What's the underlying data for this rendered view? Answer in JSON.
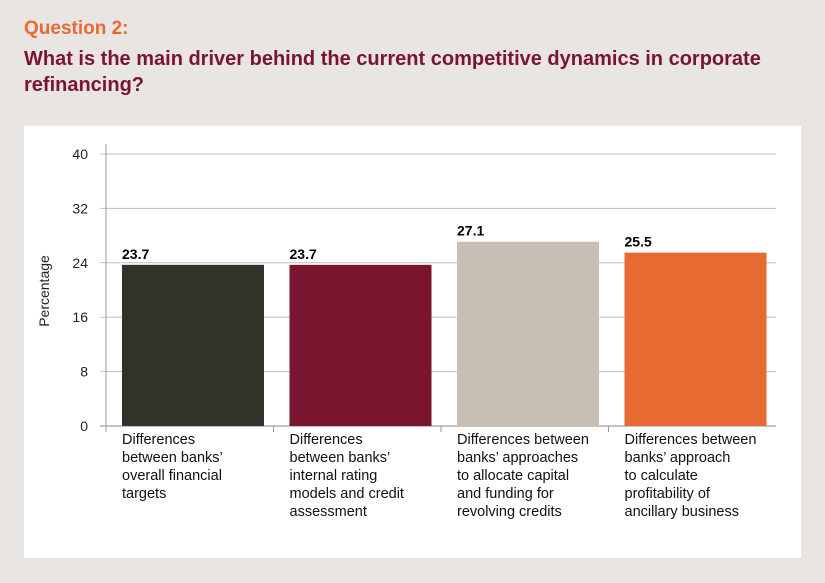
{
  "header": {
    "question_label": "Question 2:",
    "question_text": "What is the main driver behind the current competitive dynamics in corporate refinancing?"
  },
  "chart_data": {
    "type": "bar",
    "title": "",
    "xlabel": "",
    "ylabel": "Percentage",
    "ylim": [
      0,
      40
    ],
    "yticks": [
      0,
      8,
      16,
      24,
      32,
      40
    ],
    "grid": true,
    "categories": [
      "Differences between banks’ overall financial targets",
      "Differences between banks’ internal rating models and credit assessment",
      "Differences between banks’ approaches to allocate capital and funding for revolving credits",
      "Differences between banks’ approach to calculate profitability of ancillary business"
    ],
    "category_lines": [
      [
        "Differences",
        "between banks’",
        "overall financial",
        "targets"
      ],
      [
        "Differences",
        "between banks’",
        "internal rating",
        "models and credit",
        "assessment"
      ],
      [
        "Differences between",
        "banks’ approaches",
        "to allocate capital",
        "and funding for",
        "revolving credits"
      ],
      [
        "Differences between",
        "banks’ approach",
        "to calculate",
        "profitability of",
        "ancillary business"
      ]
    ],
    "values": [
      23.7,
      23.7,
      27.1,
      25.5
    ],
    "value_labels": [
      "23.7",
      "23.7",
      "27.1",
      "25.5"
    ],
    "colors": [
      "#33322a",
      "#7a1530",
      "#c8bfb5",
      "#e86a33"
    ],
    "grid_color": "#bfbfbf"
  }
}
